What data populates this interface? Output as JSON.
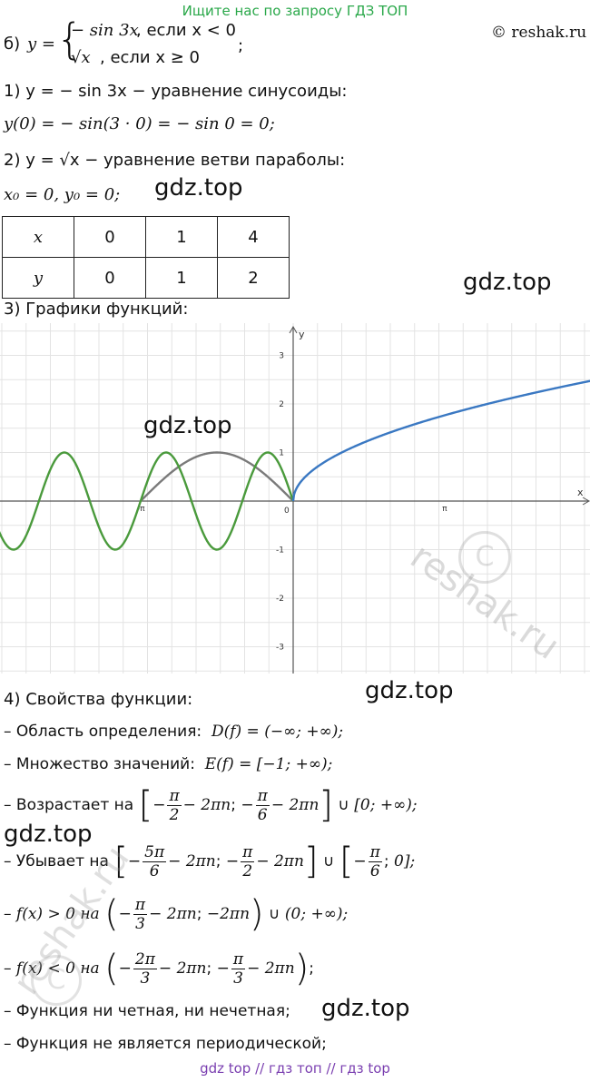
{
  "banner": "Ищите нас по запросу ГДЗ ТОП",
  "copyright": "© reshak.ru",
  "part_b": {
    "label": "б)",
    "func_lhs": "y =",
    "case1_expr": "− sin 3x",
    "case1_cond": ", если x < 0",
    "case2_expr": "√x",
    "case2_cond": ", если x ≥ 0",
    "trail": ";"
  },
  "steps": {
    "s1": "1) y = − sin 3x − уравнение синусоиды:",
    "s1_calc": "y(0) = − sin(3 · 0) = − sin 0 = 0;",
    "s2": "2) y = √x − уравнение ветви параболы:",
    "s2_vertex": "x₀ = 0,  y₀ = 0;",
    "s3": "3) Графики функций:",
    "s4": "4) Свойства функции:"
  },
  "table": {
    "row_x": [
      "x",
      "0",
      "1",
      "4"
    ],
    "row_y": [
      "y",
      "0",
      "1",
      "2"
    ]
  },
  "watermarks": {
    "gdz": "gdz.top",
    "reshak": "reshak.ru"
  },
  "chart_data": {
    "type": "line",
    "xlabel": "x",
    "ylabel": "y",
    "xlim": [
      -6.5,
      6.5
    ],
    "ylim": [
      -3.5,
      3.5
    ],
    "grid": true,
    "x_tick_labels": [
      "-π",
      "π"
    ],
    "x_tick_values": [
      -3.1416,
      3.1416
    ],
    "origin_label": "0",
    "y_ticks": [
      -3,
      -2,
      -1,
      1,
      2,
      3
    ],
    "series": [
      {
        "formula": "-sin(3x)",
        "domain": [
          -6.5,
          0
        ],
        "color": "#4a9a3c"
      },
      {
        "formula": "sqrt(x)",
        "domain": [
          0,
          6.5
        ],
        "color": "#3a78c2"
      },
      {
        "formula": "-sin(x)",
        "domain": [
          -3.1416,
          0
        ],
        "color": "#7a7a7a"
      }
    ]
  },
  "props": {
    "domain": "– Область определения:",
    "domain_expr": "D(f) = (−∞; +∞);",
    "range": "– Множество значений:",
    "range_expr": "E(f) = [−1; +∞);",
    "incr": "– Возрастает на",
    "decr": "– Убывает на",
    "pos": "– f(x) > 0 на",
    "neg": "– f(x) < 0 на",
    "parity": "– Функция ни четная, ни нечетная;",
    "period": "– Функция не является периодической;",
    "pi": "π",
    "n2": "2",
    "n3": "3",
    "n5pi": "5π",
    "n6": "6",
    "n2pi": "2π",
    "minus2pin": "− 2πn",
    "neg2pin": "−2πn",
    "union": "∪",
    "zero_inf_half": "[0; +∞);",
    "zero_inf_open": "(0; +∞);",
    "zero_close": "0];",
    "minus": "−",
    "semicolon": ";",
    "sep": ";"
  },
  "footer": "gdz top  //  гдз топ  //  гдз top"
}
